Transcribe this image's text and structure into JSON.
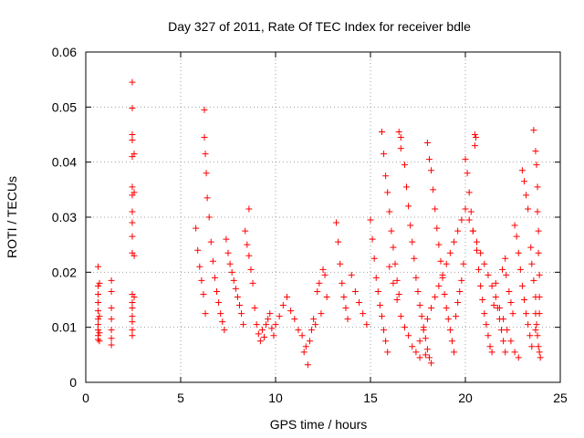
{
  "chart_data": {
    "type": "scatter",
    "title": "Day 327 of 2011, Rate Of TEC Index for receiver bdle",
    "xlabel": "GPS time / hours",
    "ylabel": "ROTI / TECUs",
    "xlim": [
      0,
      25
    ],
    "ylim": [
      0,
      0.06
    ],
    "x_ticks": [
      0,
      5,
      10,
      15,
      20,
      25
    ],
    "x_tick_labels": [
      "0",
      "5",
      "10",
      "15",
      "20",
      "25"
    ],
    "y_ticks": [
      0,
      0.01,
      0.02,
      0.03,
      0.04,
      0.05,
      0.06
    ],
    "y_tick_labels": [
      "0",
      "0.01",
      "0.02",
      "0.03",
      "0.04",
      "0.05",
      "0.06"
    ],
    "grid": true,
    "marker": "plus",
    "color": "#ff0000",
    "series": [
      {
        "name": "ROTI",
        "points": [
          [
            0.65,
            0.021
          ],
          [
            0.65,
            0.0175
          ],
          [
            0.65,
            0.016
          ],
          [
            0.65,
            0.0145
          ],
          [
            0.65,
            0.013
          ],
          [
            0.65,
            0.0115
          ],
          [
            0.65,
            0.0105
          ],
          [
            0.65,
            0.0095
          ],
          [
            0.65,
            0.0085
          ],
          [
            0.65,
            0.0078
          ],
          [
            0.72,
            0.018
          ],
          [
            0.72,
            0.012
          ],
          [
            0.72,
            0.009
          ],
          [
            0.72,
            0.0075
          ],
          [
            1.35,
            0.0185
          ],
          [
            1.35,
            0.0165
          ],
          [
            1.35,
            0.0135
          ],
          [
            1.35,
            0.0115
          ],
          [
            1.35,
            0.0095
          ],
          [
            1.35,
            0.008
          ],
          [
            1.35,
            0.0068
          ],
          [
            2.45,
            0.0545
          ],
          [
            2.45,
            0.0498
          ],
          [
            2.45,
            0.045
          ],
          [
            2.45,
            0.044
          ],
          [
            2.45,
            0.041
          ],
          [
            2.45,
            0.0355
          ],
          [
            2.45,
            0.034
          ],
          [
            2.45,
            0.031
          ],
          [
            2.45,
            0.029
          ],
          [
            2.45,
            0.0265
          ],
          [
            2.45,
            0.0235
          ],
          [
            2.45,
            0.016
          ],
          [
            2.45,
            0.0145
          ],
          [
            2.45,
            0.0135
          ],
          [
            2.45,
            0.012
          ],
          [
            2.45,
            0.011
          ],
          [
            2.45,
            0.0095
          ],
          [
            2.45,
            0.0085
          ],
          [
            2.55,
            0.0415
          ],
          [
            2.55,
            0.0345
          ],
          [
            2.55,
            0.023
          ],
          [
            2.55,
            0.0155
          ],
          [
            5.8,
            0.028
          ],
          [
            5.9,
            0.024
          ],
          [
            6.0,
            0.021
          ],
          [
            6.1,
            0.0185
          ],
          [
            6.2,
            0.016
          ],
          [
            6.3,
            0.0125
          ],
          [
            6.25,
            0.0495
          ],
          [
            6.25,
            0.0445
          ],
          [
            6.3,
            0.0415
          ],
          [
            6.35,
            0.038
          ],
          [
            6.4,
            0.0335
          ],
          [
            6.5,
            0.03
          ],
          [
            6.6,
            0.0255
          ],
          [
            6.7,
            0.022
          ],
          [
            6.8,
            0.019
          ],
          [
            6.9,
            0.0165
          ],
          [
            7.0,
            0.0145
          ],
          [
            7.1,
            0.0125
          ],
          [
            7.2,
            0.011
          ],
          [
            7.3,
            0.0095
          ],
          [
            7.4,
            0.026
          ],
          [
            7.5,
            0.0235
          ],
          [
            7.6,
            0.0215
          ],
          [
            7.7,
            0.02
          ],
          [
            7.8,
            0.0185
          ],
          [
            7.9,
            0.017
          ],
          [
            8.0,
            0.0155
          ],
          [
            8.1,
            0.014
          ],
          [
            8.2,
            0.0125
          ],
          [
            8.3,
            0.0105
          ],
          [
            8.4,
            0.0275
          ],
          [
            8.5,
            0.025
          ],
          [
            8.6,
            0.023
          ],
          [
            8.7,
            0.0205
          ],
          [
            8.6,
            0.0315
          ],
          [
            8.8,
            0.018
          ],
          [
            8.9,
            0.0135
          ],
          [
            9.0,
            0.0105
          ],
          [
            9.1,
            0.0088
          ],
          [
            9.2,
            0.0075
          ],
          [
            9.3,
            0.0095
          ],
          [
            9.4,
            0.0082
          ],
          [
            9.5,
            0.0105
          ],
          [
            9.6,
            0.0115
          ],
          [
            9.7,
            0.0125
          ],
          [
            9.8,
            0.0098
          ],
          [
            9.9,
            0.0085
          ],
          [
            10.0,
            0.0105
          ],
          [
            10.2,
            0.012
          ],
          [
            10.4,
            0.014
          ],
          [
            10.6,
            0.0155
          ],
          [
            10.8,
            0.013
          ],
          [
            11.0,
            0.0115
          ],
          [
            11.2,
            0.0095
          ],
          [
            11.4,
            0.0085
          ],
          [
            11.5,
            0.0055
          ],
          [
            11.6,
            0.0065
          ],
          [
            11.7,
            0.0032
          ],
          [
            11.8,
            0.0075
          ],
          [
            12.0,
            0.0115
          ],
          [
            12.2,
            0.0165
          ],
          [
            12.3,
            0.018
          ],
          [
            12.5,
            0.0205
          ],
          [
            12.6,
            0.0195
          ],
          [
            12.7,
            0.0155
          ],
          [
            12.4,
            0.0125
          ],
          [
            12.1,
            0.0105
          ],
          [
            11.9,
            0.0095
          ],
          [
            13.2,
            0.029
          ],
          [
            13.3,
            0.0255
          ],
          [
            13.4,
            0.0215
          ],
          [
            13.5,
            0.018
          ],
          [
            13.6,
            0.0155
          ],
          [
            13.7,
            0.0135
          ],
          [
            13.8,
            0.0115
          ],
          [
            14.0,
            0.0195
          ],
          [
            14.2,
            0.0165
          ],
          [
            14.4,
            0.0145
          ],
          [
            14.6,
            0.0125
          ],
          [
            14.8,
            0.0105
          ],
          [
            15.0,
            0.0295
          ],
          [
            15.1,
            0.026
          ],
          [
            15.2,
            0.0225
          ],
          [
            15.3,
            0.019
          ],
          [
            15.4,
            0.0165
          ],
          [
            15.5,
            0.014
          ],
          [
            15.6,
            0.012
          ],
          [
            15.7,
            0.0095
          ],
          [
            15.8,
            0.0075
          ],
          [
            15.9,
            0.0055
          ],
          [
            15.6,
            0.0455
          ],
          [
            15.7,
            0.0415
          ],
          [
            15.8,
            0.0375
          ],
          [
            15.9,
            0.0345
          ],
          [
            16.0,
            0.031
          ],
          [
            16.1,
            0.0275
          ],
          [
            16.2,
            0.0245
          ],
          [
            16.3,
            0.0215
          ],
          [
            16.4,
            0.0185
          ],
          [
            16.5,
            0.016
          ],
          [
            16.5,
            0.0455
          ],
          [
            16.6,
            0.0445
          ],
          [
            16.6,
            0.0425
          ],
          [
            16.8,
            0.0395
          ],
          [
            16.9,
            0.0355
          ],
          [
            17.0,
            0.032
          ],
          [
            17.1,
            0.0285
          ],
          [
            17.2,
            0.0255
          ],
          [
            17.3,
            0.0225
          ],
          [
            17.4,
            0.019
          ],
          [
            17.5,
            0.0165
          ],
          [
            17.6,
            0.014
          ],
          [
            17.7,
            0.012
          ],
          [
            17.8,
            0.01
          ],
          [
            17.9,
            0.008
          ],
          [
            18.0,
            0.006
          ],
          [
            18.1,
            0.0045
          ],
          [
            18.2,
            0.0035
          ],
          [
            17.6,
            0.0045
          ],
          [
            17.9,
            0.005
          ],
          [
            18.0,
            0.0435
          ],
          [
            18.1,
            0.0405
          ],
          [
            18.2,
            0.0385
          ],
          [
            18.3,
            0.035
          ],
          [
            18.4,
            0.0315
          ],
          [
            18.5,
            0.028
          ],
          [
            18.6,
            0.025
          ],
          [
            18.7,
            0.022
          ],
          [
            18.8,
            0.019
          ],
          [
            18.9,
            0.016
          ],
          [
            19.0,
            0.0135
          ],
          [
            19.1,
            0.0115
          ],
          [
            19.2,
            0.0095
          ],
          [
            19.3,
            0.0075
          ],
          [
            19.4,
            0.0055
          ],
          [
            19.5,
            0.012
          ],
          [
            19.6,
            0.0145
          ],
          [
            19.7,
            0.0165
          ],
          [
            19.8,
            0.0185
          ],
          [
            19.9,
            0.0215
          ],
          [
            20.0,
            0.0405
          ],
          [
            20.1,
            0.038
          ],
          [
            20.2,
            0.0345
          ],
          [
            20.3,
            0.031
          ],
          [
            20.4,
            0.0275
          ],
          [
            20.5,
            0.045
          ],
          [
            20.55,
            0.0445
          ],
          [
            20.5,
            0.043
          ],
          [
            20.6,
            0.024
          ],
          [
            20.7,
            0.0205
          ],
          [
            20.8,
            0.0175
          ],
          [
            20.9,
            0.015
          ],
          [
            21.0,
            0.0125
          ],
          [
            21.1,
            0.0105
          ],
          [
            21.2,
            0.0085
          ],
          [
            21.3,
            0.0065
          ],
          [
            21.4,
            0.0055
          ],
          [
            21.5,
            0.014
          ],
          [
            21.6,
            0.018
          ],
          [
            21.7,
            0.0135
          ],
          [
            21.8,
            0.0115
          ],
          [
            21.9,
            0.0095
          ],
          [
            22.0,
            0.0075
          ],
          [
            22.1,
            0.0055
          ],
          [
            21.95,
            0.0205
          ],
          [
            22.1,
            0.0225
          ],
          [
            22.15,
            0.0195
          ],
          [
            22.3,
            0.0165
          ],
          [
            22.4,
            0.0145
          ],
          [
            22.5,
            0.0125
          ],
          [
            22.6,
            0.0285
          ],
          [
            22.7,
            0.0265
          ],
          [
            22.8,
            0.0235
          ],
          [
            22.9,
            0.0205
          ],
          [
            23.0,
            0.0175
          ],
          [
            23.1,
            0.015
          ],
          [
            23.2,
            0.0125
          ],
          [
            23.3,
            0.0105
          ],
          [
            23.4,
            0.0085
          ],
          [
            23.5,
            0.0065
          ],
          [
            23.0,
            0.0385
          ],
          [
            23.1,
            0.0365
          ],
          [
            23.2,
            0.034
          ],
          [
            23.3,
            0.0315
          ],
          [
            23.45,
            0.0245
          ],
          [
            23.5,
            0.0215
          ],
          [
            23.6,
            0.0185
          ],
          [
            23.7,
            0.0155
          ],
          [
            23.7,
            0.0125
          ],
          [
            23.7,
            0.0095
          ],
          [
            23.6,
            0.0458
          ],
          [
            23.7,
            0.042
          ],
          [
            23.75,
            0.0395
          ],
          [
            23.8,
            0.0355
          ],
          [
            23.8,
            0.031
          ],
          [
            23.85,
            0.0275
          ],
          [
            23.85,
            0.0235
          ],
          [
            23.9,
            0.0195
          ],
          [
            23.9,
            0.0155
          ],
          [
            23.9,
            0.0125
          ],
          [
            23.75,
            0.0105
          ],
          [
            23.8,
            0.0085
          ],
          [
            23.85,
            0.0065
          ],
          [
            23.9,
            0.0055
          ],
          [
            23.95,
            0.0045
          ],
          [
            16.0,
            0.021
          ],
          [
            16.2,
            0.018
          ],
          [
            16.4,
            0.015
          ],
          [
            16.6,
            0.012
          ],
          [
            16.8,
            0.01
          ],
          [
            17.0,
            0.0085
          ],
          [
            17.2,
            0.0065
          ],
          [
            17.4,
            0.0055
          ],
          [
            17.6,
            0.0075
          ],
          [
            17.8,
            0.0095
          ],
          [
            18.0,
            0.0115
          ],
          [
            18.2,
            0.0135
          ],
          [
            18.4,
            0.0155
          ],
          [
            18.6,
            0.0175
          ],
          [
            18.8,
            0.0195
          ],
          [
            19.0,
            0.0215
          ],
          [
            19.2,
            0.0235
          ],
          [
            19.4,
            0.0255
          ],
          [
            19.6,
            0.0275
          ],
          [
            19.8,
            0.0295
          ],
          [
            20.0,
            0.0315
          ],
          [
            20.2,
            0.0295
          ],
          [
            20.4,
            0.0275
          ],
          [
            20.6,
            0.0255
          ],
          [
            20.8,
            0.0235
          ],
          [
            21.0,
            0.0215
          ],
          [
            21.2,
            0.0195
          ],
          [
            21.4,
            0.0175
          ],
          [
            21.6,
            0.0155
          ],
          [
            21.8,
            0.0135
          ],
          [
            22.0,
            0.0115
          ],
          [
            22.2,
            0.0095
          ],
          [
            22.4,
            0.0075
          ],
          [
            22.6,
            0.0055
          ],
          [
            22.8,
            0.0045
          ]
        ]
      }
    ]
  }
}
